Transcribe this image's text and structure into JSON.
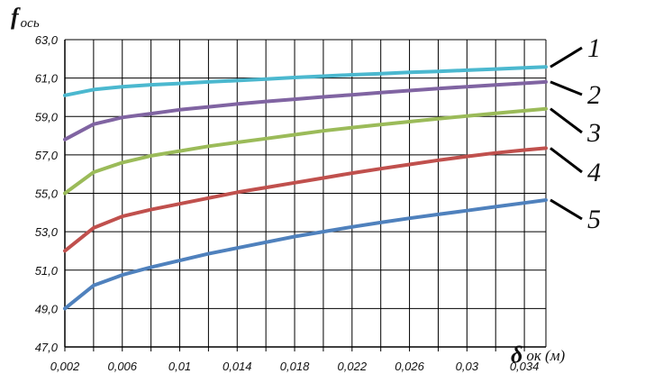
{
  "chart_data": {
    "type": "line",
    "ylabel": "f",
    "ylabel_sub": "ось",
    "xlabel": "δ",
    "xlabel_sub": "ок (м)",
    "xlim": [
      0.002,
      0.0355
    ],
    "ylim": [
      47,
      63
    ],
    "grid": true,
    "x_ticks": [
      "0,002",
      "0,006",
      "0,01",
      "0,014",
      "0,018",
      "0,022",
      "0,026",
      "0,03",
      "0,034"
    ],
    "y_ticks": [
      "47,0",
      "49,0",
      "51,0",
      "53,0",
      "55,0",
      "57,0",
      "59,0",
      "61,0",
      "63,0"
    ],
    "x": [
      0.002,
      0.004,
      0.006,
      0.008,
      0.01,
      0.012,
      0.014,
      0.016,
      0.018,
      0.02,
      0.022,
      0.024,
      0.026,
      0.028,
      0.03,
      0.032,
      0.034,
      0.0355
    ],
    "series": [
      {
        "name": "1",
        "color": "#4bb8cf",
        "values": [
          60.1,
          60.4,
          60.55,
          60.65,
          60.72,
          60.8,
          60.87,
          60.95,
          61.03,
          61.1,
          61.17,
          61.23,
          61.3,
          61.35,
          61.41,
          61.47,
          61.53,
          61.58
        ]
      },
      {
        "name": "2",
        "color": "#8064a2",
        "values": [
          57.8,
          58.6,
          58.95,
          59.15,
          59.35,
          59.5,
          59.65,
          59.78,
          59.9,
          60.02,
          60.13,
          60.24,
          60.35,
          60.45,
          60.55,
          60.64,
          60.73,
          60.8
        ]
      },
      {
        "name": "3",
        "color": "#9bbb59",
        "values": [
          55.0,
          56.1,
          56.6,
          56.95,
          57.2,
          57.45,
          57.65,
          57.85,
          58.05,
          58.25,
          58.42,
          58.58,
          58.73,
          58.88,
          59.02,
          59.16,
          59.3,
          59.4
        ]
      },
      {
        "name": "4",
        "color": "#c0504d",
        "values": [
          52.0,
          53.2,
          53.8,
          54.15,
          54.45,
          54.75,
          55.05,
          55.3,
          55.55,
          55.8,
          56.05,
          56.28,
          56.5,
          56.72,
          56.92,
          57.1,
          57.25,
          57.35
        ]
      },
      {
        "name": "5",
        "color": "#4f81bd",
        "values": [
          49.0,
          50.2,
          50.75,
          51.15,
          51.5,
          51.85,
          52.15,
          52.45,
          52.75,
          53.0,
          53.25,
          53.48,
          53.7,
          53.9,
          54.1,
          54.3,
          54.5,
          54.65
        ]
      }
    ]
  }
}
